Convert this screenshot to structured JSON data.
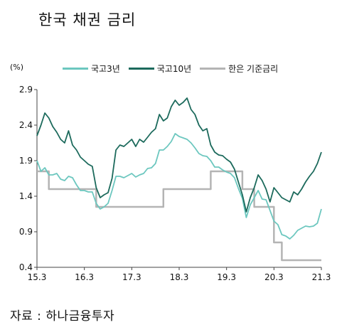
{
  "title": "한국 채권 금리",
  "source": "자료 : 하나금융투자",
  "chart_data": {
    "type": "line",
    "unit_label": "(%)",
    "x_ticks": [
      "15.3",
      "16.3",
      "17.3",
      "18.3",
      "19.3",
      "20.3",
      "21.3"
    ],
    "y_ticks": [
      "2.9",
      "2.4",
      "1.9",
      "1.4",
      "0.9",
      "0.4"
    ],
    "ylim": [
      0.4,
      2.9
    ],
    "xlim": [
      "2015-03",
      "2021-03"
    ],
    "grid": false,
    "legend_position": "top",
    "series": [
      {
        "name": "국고3년",
        "color": "#6cc7bf",
        "step": false,
        "points": [
          [
            "2015-03",
            1.9
          ],
          [
            "2015-04",
            1.75
          ],
          [
            "2015-05",
            1.8
          ],
          [
            "2015-06",
            1.7
          ],
          [
            "2015-07",
            1.7
          ],
          [
            "2015-08",
            1.72
          ],
          [
            "2015-09",
            1.64
          ],
          [
            "2015-10",
            1.62
          ],
          [
            "2015-11",
            1.68
          ],
          [
            "2015-12",
            1.66
          ],
          [
            "2016-01",
            1.56
          ],
          [
            "2016-02",
            1.48
          ],
          [
            "2016-03",
            1.48
          ],
          [
            "2016-04",
            1.46
          ],
          [
            "2016-05",
            1.46
          ],
          [
            "2016-06",
            1.3
          ],
          [
            "2016-07",
            1.22
          ],
          [
            "2016-08",
            1.25
          ],
          [
            "2016-09",
            1.3
          ],
          [
            "2016-10",
            1.48
          ],
          [
            "2016-11",
            1.68
          ],
          [
            "2016-12",
            1.68
          ],
          [
            "2017-01",
            1.66
          ],
          [
            "2017-02",
            1.69
          ],
          [
            "2017-03",
            1.72
          ],
          [
            "2017-04",
            1.67
          ],
          [
            "2017-05",
            1.7
          ],
          [
            "2017-06",
            1.72
          ],
          [
            "2017-07",
            1.79
          ],
          [
            "2017-08",
            1.8
          ],
          [
            "2017-09",
            1.86
          ],
          [
            "2017-10",
            2.05
          ],
          [
            "2017-11",
            2.05
          ],
          [
            "2017-12",
            2.1
          ],
          [
            "2018-01",
            2.17
          ],
          [
            "2018-02",
            2.28
          ],
          [
            "2018-03",
            2.24
          ],
          [
            "2018-04",
            2.22
          ],
          [
            "2018-05",
            2.2
          ],
          [
            "2018-06",
            2.15
          ],
          [
            "2018-07",
            2.08
          ],
          [
            "2018-08",
            2.0
          ],
          [
            "2018-09",
            1.97
          ],
          [
            "2018-10",
            1.96
          ],
          [
            "2018-11",
            1.9
          ],
          [
            "2018-12",
            1.81
          ],
          [
            "2019-01",
            1.81
          ],
          [
            "2019-02",
            1.77
          ],
          [
            "2019-03",
            1.74
          ],
          [
            "2019-04",
            1.72
          ],
          [
            "2019-05",
            1.66
          ],
          [
            "2019-06",
            1.51
          ],
          [
            "2019-07",
            1.37
          ],
          [
            "2019-08",
            1.1
          ],
          [
            "2019-09",
            1.28
          ],
          [
            "2019-10",
            1.38
          ],
          [
            "2019-11",
            1.48
          ],
          [
            "2019-12",
            1.36
          ],
          [
            "2020-01",
            1.35
          ],
          [
            "2020-02",
            1.2
          ],
          [
            "2020-03",
            1.05
          ],
          [
            "2020-04",
            1.0
          ],
          [
            "2020-05",
            0.86
          ],
          [
            "2020-06",
            0.84
          ],
          [
            "2020-07",
            0.8
          ],
          [
            "2020-08",
            0.85
          ],
          [
            "2020-09",
            0.92
          ],
          [
            "2020-10",
            0.95
          ],
          [
            "2020-11",
            0.98
          ],
          [
            "2020-12",
            0.97
          ],
          [
            "2021-01",
            0.98
          ],
          [
            "2021-02",
            1.02
          ],
          [
            "2021-03",
            1.22
          ]
        ]
      },
      {
        "name": "국고10년",
        "color": "#1c6a5c",
        "step": false,
        "points": [
          [
            "2015-03",
            2.25
          ],
          [
            "2015-04",
            2.4
          ],
          [
            "2015-05",
            2.57
          ],
          [
            "2015-06",
            2.5
          ],
          [
            "2015-07",
            2.38
          ],
          [
            "2015-08",
            2.3
          ],
          [
            "2015-09",
            2.2
          ],
          [
            "2015-10",
            2.15
          ],
          [
            "2015-11",
            2.32
          ],
          [
            "2015-12",
            2.12
          ],
          [
            "2016-01",
            2.05
          ],
          [
            "2016-02",
            1.95
          ],
          [
            "2016-03",
            1.9
          ],
          [
            "2016-04",
            1.85
          ],
          [
            "2016-05",
            1.82
          ],
          [
            "2016-06",
            1.52
          ],
          [
            "2016-07",
            1.38
          ],
          [
            "2016-08",
            1.42
          ],
          [
            "2016-09",
            1.45
          ],
          [
            "2016-10",
            1.65
          ],
          [
            "2016-11",
            2.05
          ],
          [
            "2016-12",
            2.12
          ],
          [
            "2017-01",
            2.1
          ],
          [
            "2017-02",
            2.15
          ],
          [
            "2017-03",
            2.2
          ],
          [
            "2017-04",
            2.1
          ],
          [
            "2017-05",
            2.2
          ],
          [
            "2017-06",
            2.16
          ],
          [
            "2017-07",
            2.23
          ],
          [
            "2017-08",
            2.3
          ],
          [
            "2017-09",
            2.35
          ],
          [
            "2017-10",
            2.55
          ],
          [
            "2017-11",
            2.46
          ],
          [
            "2017-12",
            2.5
          ],
          [
            "2018-01",
            2.66
          ],
          [
            "2018-02",
            2.75
          ],
          [
            "2018-03",
            2.68
          ],
          [
            "2018-04",
            2.72
          ],
          [
            "2018-05",
            2.78
          ],
          [
            "2018-06",
            2.62
          ],
          [
            "2018-07",
            2.55
          ],
          [
            "2018-08",
            2.4
          ],
          [
            "2018-09",
            2.32
          ],
          [
            "2018-10",
            2.35
          ],
          [
            "2018-11",
            2.12
          ],
          [
            "2018-12",
            2.02
          ],
          [
            "2019-01",
            1.98
          ],
          [
            "2019-02",
            1.97
          ],
          [
            "2019-03",
            1.92
          ],
          [
            "2019-04",
            1.88
          ],
          [
            "2019-05",
            1.78
          ],
          [
            "2019-06",
            1.6
          ],
          [
            "2019-07",
            1.42
          ],
          [
            "2019-08",
            1.18
          ],
          [
            "2019-09",
            1.38
          ],
          [
            "2019-10",
            1.52
          ],
          [
            "2019-11",
            1.7
          ],
          [
            "2019-12",
            1.62
          ],
          [
            "2020-01",
            1.5
          ],
          [
            "2020-02",
            1.32
          ],
          [
            "2020-03",
            1.52
          ],
          [
            "2020-04",
            1.45
          ],
          [
            "2020-05",
            1.38
          ],
          [
            "2020-06",
            1.35
          ],
          [
            "2020-07",
            1.32
          ],
          [
            "2020-08",
            1.46
          ],
          [
            "2020-09",
            1.42
          ],
          [
            "2020-10",
            1.5
          ],
          [
            "2020-11",
            1.6
          ],
          [
            "2020-12",
            1.68
          ],
          [
            "2021-01",
            1.75
          ],
          [
            "2021-02",
            1.86
          ],
          [
            "2021-03",
            2.02
          ]
        ]
      },
      {
        "name": "한은 기준금리",
        "color": "#b4b4b4",
        "step": true,
        "points": [
          [
            "2015-03",
            1.75
          ],
          [
            "2015-06",
            1.5
          ],
          [
            "2016-06",
            1.25
          ],
          [
            "2017-11",
            1.5
          ],
          [
            "2018-11",
            1.75
          ],
          [
            "2019-07",
            1.5
          ],
          [
            "2019-10",
            1.25
          ],
          [
            "2020-03",
            0.75
          ],
          [
            "2020-05",
            0.5
          ],
          [
            "2021-03",
            0.5
          ]
        ]
      }
    ]
  }
}
